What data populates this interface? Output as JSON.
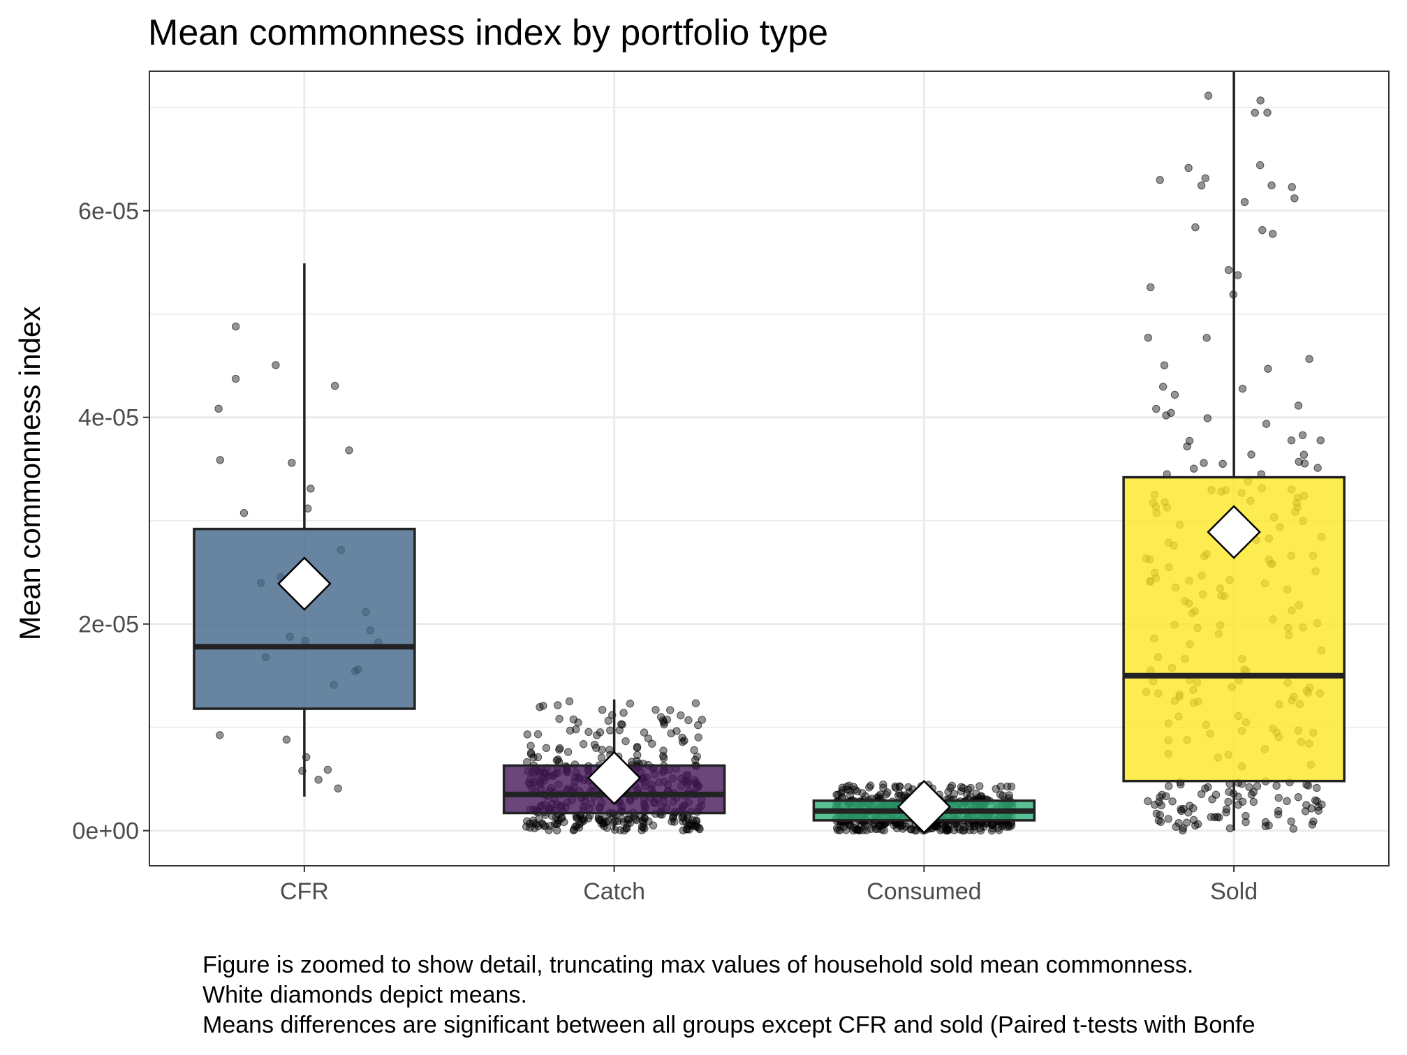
{
  "chart_data": {
    "type": "boxplot",
    "title": "Mean commonness index by portfolio type",
    "xlabel": "",
    "ylabel": "Mean commonness index",
    "categories": [
      "CFR",
      "Catch",
      "Consumed",
      "Sold"
    ],
    "y_ticks": [
      0,
      2e-05,
      4e-05,
      6e-05
    ],
    "y_tick_labels": [
      "0e+00",
      "2e-05",
      "4e-05",
      "6e-05"
    ],
    "ylim": [
      -3.4e-06,
      7.35e-05
    ],
    "grid": true,
    "legend": "none",
    "boxes": [
      {
        "name": "CFR",
        "color": "#416788",
        "q1": 1.18e-05,
        "median": 1.78e-05,
        "q3": 2.92e-05,
        "whisker_low": 3.3e-06,
        "whisker_high": 5.49e-05,
        "mean": 2.39e-05
      },
      {
        "name": "Catch",
        "color": "#46185a",
        "q1": 1.7e-06,
        "median": 3.5e-06,
        "q3": 6.3e-06,
        "whisker_low": 0.0,
        "whisker_high": 1.27e-05,
        "mean": 5.1e-06
      },
      {
        "name": "Consumed",
        "color": "#30b07a",
        "q1": 1e-06,
        "median": 1.9e-06,
        "q3": 2.9e-06,
        "whisker_low": 0.0,
        "whisker_high": 4.5e-06,
        "mean": 2.3e-06
      },
      {
        "name": "Sold",
        "color": "#fde725",
        "q1": 4.8e-06,
        "median": 1.5e-05,
        "q3": 3.42e-05,
        "whisker_low": 0.0,
        "whisker_high": 7.35e-05,
        "mean": 2.89e-05
      }
    ],
    "caption": [
      "Figure is zoomed to show detail, truncating max values of household sold mean commonness.",
      "White diamonds depict means.",
      "Means differences are significant between all groups except CFR and sold (Paired t-tests with Bonfe"
    ]
  }
}
